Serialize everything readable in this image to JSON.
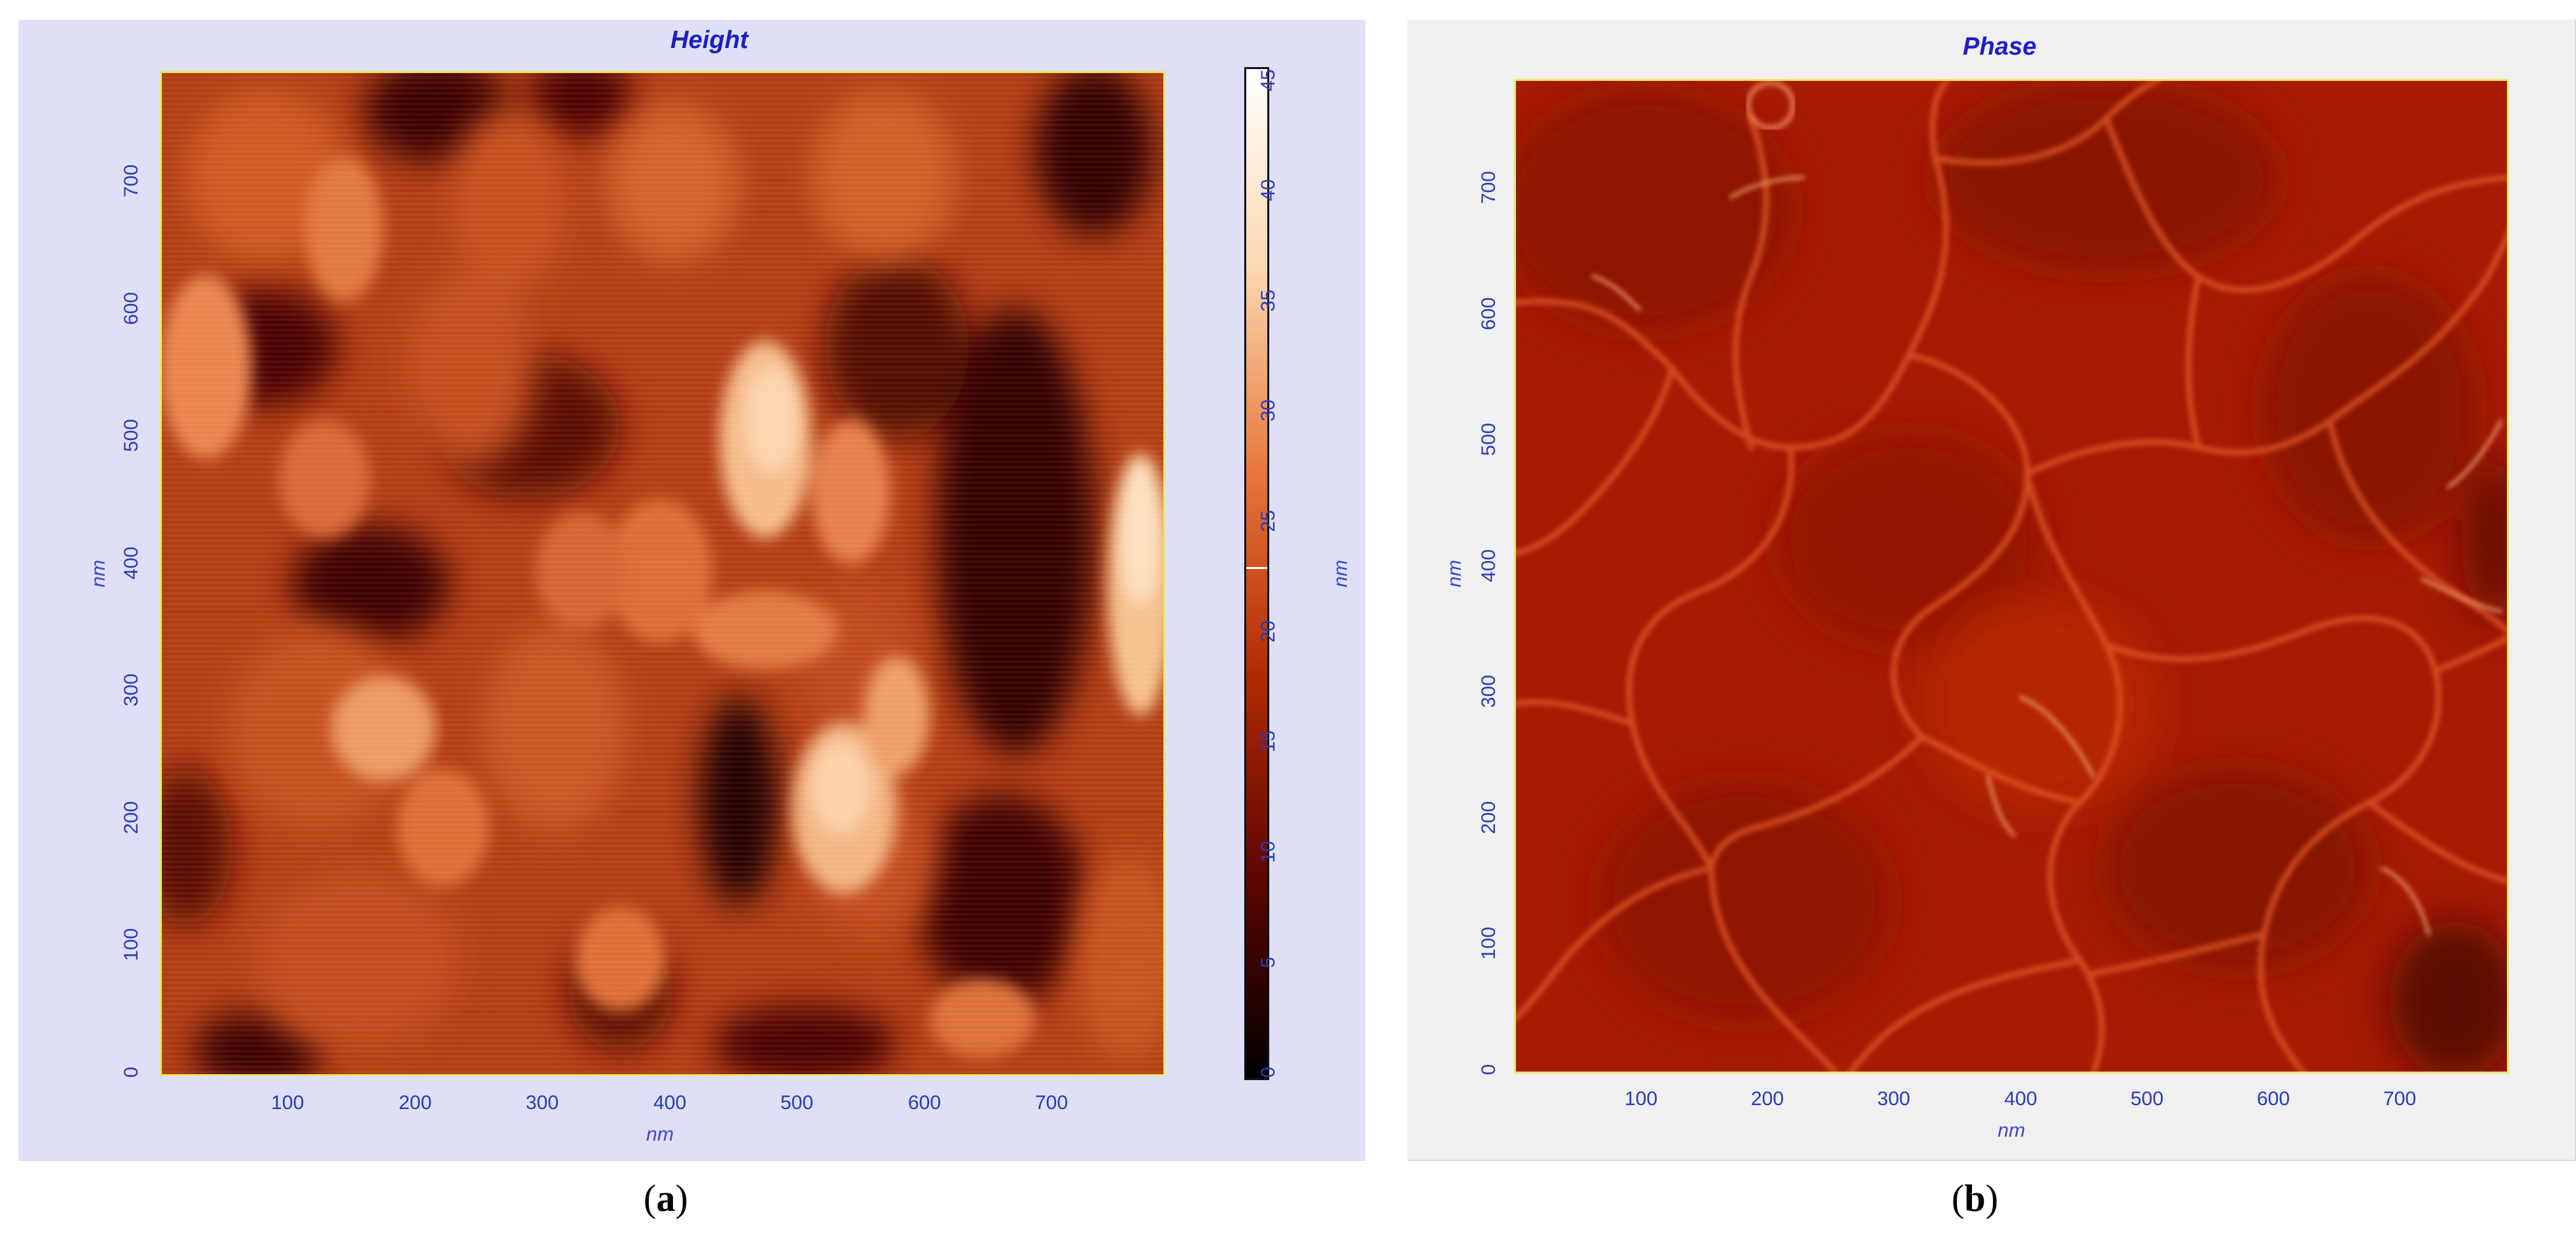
{
  "panel_a": {
    "title": "Height",
    "y_ticks": [
      "0",
      "100",
      "200",
      "300",
      "400",
      "500",
      "600",
      "700"
    ],
    "x_ticks": [
      "100",
      "200",
      "300",
      "400",
      "500",
      "600",
      "700"
    ],
    "x_unit": "nm",
    "y_unit": "nm",
    "colorbar": {
      "ticks": [
        "0",
        "5",
        "10",
        "15",
        "20",
        "25",
        "30",
        "35",
        "40",
        "45"
      ],
      "unit": "nm",
      "marker_value": 22.8,
      "colors": [
        "#000000",
        "#5e0600",
        "#b22a04",
        "#e8763a",
        "#fbd7b0",
        "#ffffff"
      ]
    },
    "caption_letter": "a"
  },
  "panel_b": {
    "title": "Phase",
    "y_ticks": [
      "0",
      "100",
      "200",
      "300",
      "400",
      "500",
      "600",
      "700"
    ],
    "x_ticks": [
      "100",
      "200",
      "300",
      "400",
      "500",
      "600",
      "700"
    ],
    "x_unit": "nm",
    "y_unit": "nm",
    "caption_letter": "b"
  },
  "colors": {
    "height_base": "#b23c12",
    "phase_base": "#a51b04",
    "axis_text": "#2a3bb6",
    "frame": "#e8e86a"
  }
}
